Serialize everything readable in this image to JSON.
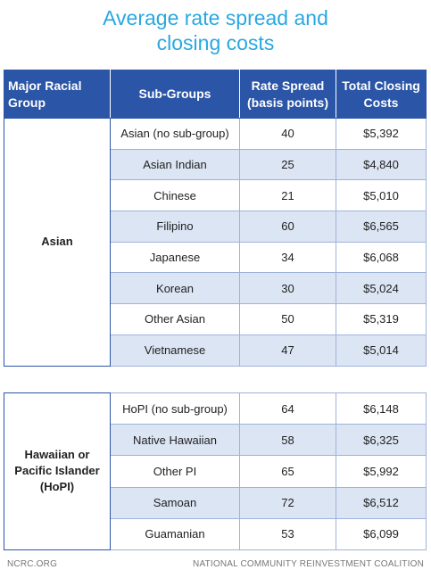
{
  "title": [
    "Average rate spread and",
    "closing costs"
  ],
  "header": [
    "Major Racial Group",
    "Sub-Groups",
    "Rate Spread (basis points)",
    "Total Closing Costs"
  ],
  "groups": [
    {
      "name": "Asian",
      "rows": [
        [
          "Asian (no sub-group)",
          40,
          "$5,392"
        ],
        [
          "Asian Indian",
          25,
          "$4,840"
        ],
        [
          "Chinese",
          21,
          "$5,010"
        ],
        [
          "Filipino",
          60,
          "$6,565"
        ],
        [
          "Japanese",
          34,
          "$6,068"
        ],
        [
          "Korean",
          30,
          "$5,024"
        ],
        [
          "Other Asian",
          50,
          "$5,319"
        ],
        [
          "Vietnamese",
          47,
          "$5,014"
        ]
      ]
    },
    {
      "name": "Hawaiian or Pacific Islander (HoPI)",
      "rows": [
        [
          "HoPI (no sub-group)",
          64,
          "$6,148"
        ],
        [
          "Native Hawaiian",
          58,
          "$6,325"
        ],
        [
          "Other PI",
          65,
          "$5,992"
        ],
        [
          "Samoan",
          72,
          "$6,512"
        ],
        [
          "Guamanian",
          53,
          "$6,099"
        ]
      ]
    }
  ],
  "footer": {
    "left": "NCRC.ORG",
    "right": "NATIONAL COMMUNITY REINVESTMENT COALITION"
  }
}
